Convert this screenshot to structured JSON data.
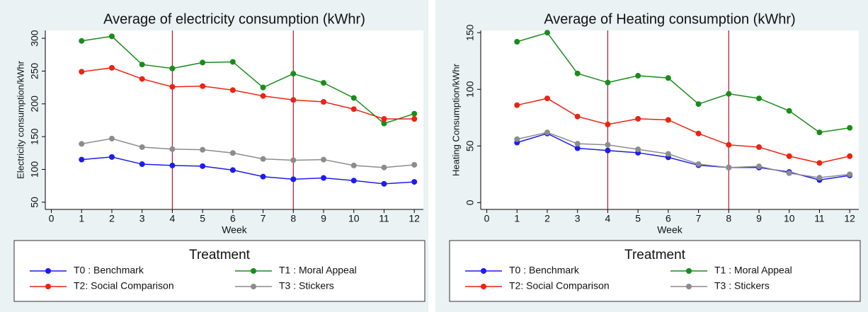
{
  "chart_data": [
    {
      "type": "line",
      "title": "Average of electricity consumption (kWhr)",
      "x_label": "Week",
      "y_label": "Electricity consumption/kWhr",
      "x": [
        1,
        2,
        3,
        4,
        5,
        6,
        7,
        8,
        9,
        10,
        11,
        12
      ],
      "series": [
        {
          "name": "T0 : Benchmark",
          "color": "#1c1cf0",
          "values": [
            115,
            119,
            108,
            106,
            105,
            99,
            89,
            85,
            87,
            83,
            78,
            81
          ]
        },
        {
          "name": "T1 : Moral Appeal",
          "color": "#1a8c1a",
          "values": [
            296,
            303,
            260,
            254,
            263,
            264,
            225,
            246,
            232,
            209,
            170,
            185
          ]
        },
        {
          "name": "T2: Social Comparison",
          "color": "#ee2211",
          "values": [
            249,
            255,
            238,
            226,
            227,
            221,
            212,
            206,
            203,
            192,
            177,
            177
          ]
        },
        {
          "name": "T3 : Stickers",
          "color": "#8c8c8c",
          "values": [
            139,
            147,
            134,
            131,
            130,
            125,
            116,
            114,
            115,
            106,
            103,
            107
          ]
        }
      ],
      "xlim": [
        -0.2,
        12.3
      ],
      "xticks": [
        0,
        1,
        2,
        3,
        4,
        5,
        6,
        7,
        8,
        9,
        10,
        11,
        12
      ],
      "ylim": [
        39,
        312
      ],
      "yticks": [
        50,
        100,
        150,
        200,
        250,
        300
      ],
      "vlines": [
        4,
        8
      ],
      "vline_color": "#b0182a",
      "legend_title": "Treatment",
      "legend_position": "bottom"
    },
    {
      "type": "line",
      "title": "Average of Heating consumption (kWhr)",
      "x_label": "Week",
      "y_label": "Heating Consumption/kWhr",
      "x": [
        1,
        2,
        3,
        4,
        5,
        6,
        7,
        8,
        9,
        10,
        11,
        12
      ],
      "series": [
        {
          "name": "T0 : Benchmark",
          "color": "#1c1cf0",
          "values": [
            53,
            61,
            48,
            46,
            44,
            40,
            33,
            31,
            31,
            27,
            20,
            24
          ]
        },
        {
          "name": "T1 : Moral Appeal",
          "color": "#1a8c1a",
          "values": [
            142,
            150,
            114,
            106,
            112,
            110,
            87,
            96,
            92,
            81,
            62,
            66
          ]
        },
        {
          "name": "T2: Social Comparison",
          "color": "#ee2211",
          "values": [
            86,
            92,
            76,
            69,
            74,
            73,
            61,
            51,
            49,
            41,
            35,
            41
          ]
        },
        {
          "name": "T3 : Stickers",
          "color": "#8c8c8c",
          "values": [
            56,
            62,
            52,
            51,
            47,
            43,
            34,
            31,
            32,
            26,
            22,
            25
          ]
        }
      ],
      "xlim": [
        -0.2,
        12.3
      ],
      "xticks": [
        0,
        1,
        2,
        3,
        4,
        5,
        6,
        7,
        8,
        9,
        10,
        11,
        12
      ],
      "ylim": [
        -6,
        152
      ],
      "yticks": [
        0,
        50,
        100,
        150
      ],
      "vlines": [
        4,
        8
      ],
      "vline_color": "#b0182a",
      "legend_title": "Treatment",
      "legend_position": "bottom"
    }
  ]
}
